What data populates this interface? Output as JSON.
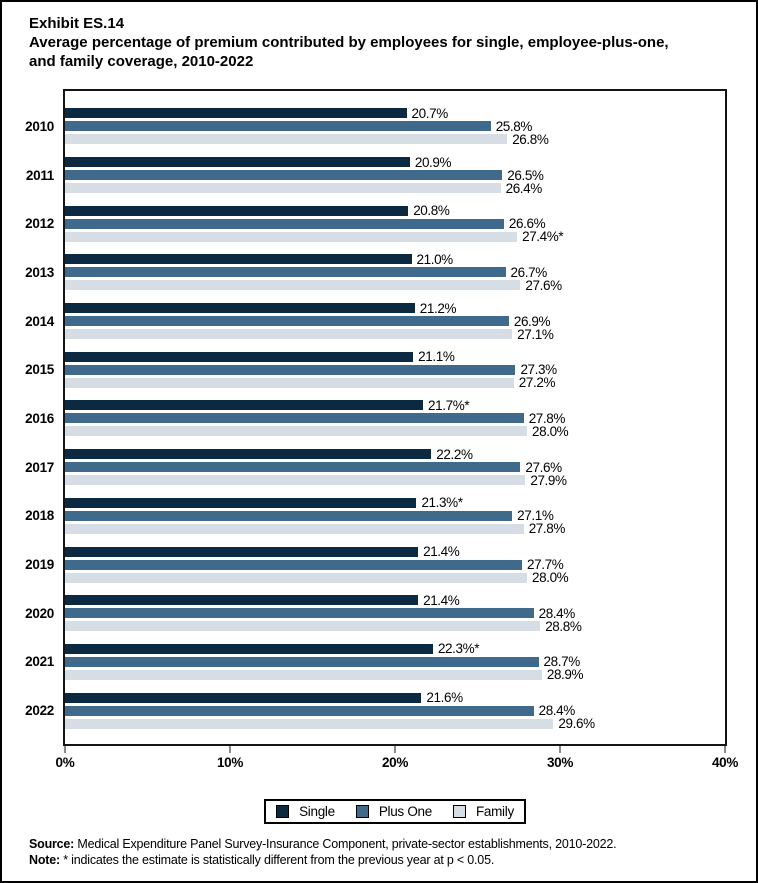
{
  "header": {
    "exhibit": "Exhibit ES.14",
    "title_lines": [
      "Average percentage of premium contributed by employees for single, employee-plus-one,",
      "and family coverage, 2010-2022"
    ]
  },
  "chart_data": {
    "type": "bar",
    "orientation": "horizontal",
    "title": "Average percentage of premium contributed by employees for single, employee-plus-one, and family coverage, 2010-2022",
    "xlabel": "",
    "ylabel": "",
    "xlim": [
      0,
      40
    ],
    "grid": false,
    "legend_position": "bottom",
    "categories": [
      "2010",
      "2011",
      "2012",
      "2013",
      "2014",
      "2015",
      "2016",
      "2017",
      "2018",
      "2019",
      "2020",
      "2021",
      "2022"
    ],
    "series": [
      {
        "name": "Single",
        "color": "#0b2940",
        "values": [
          20.7,
          20.9,
          20.8,
          21.0,
          21.2,
          21.1,
          21.7,
          22.2,
          21.3,
          21.4,
          21.4,
          22.3,
          21.6
        ],
        "labels": [
          "20.7%",
          "20.9%",
          "20.8%",
          "21.0%",
          "21.2%",
          "21.1%",
          "21.7%*",
          "22.2%",
          "21.3%*",
          "21.4%",
          "21.4%",
          "22.3%*",
          "21.6%"
        ]
      },
      {
        "name": "Plus One",
        "color": "#3f6a8c",
        "values": [
          25.8,
          26.5,
          26.6,
          26.7,
          26.9,
          27.3,
          27.8,
          27.6,
          27.1,
          27.7,
          28.4,
          28.7,
          28.4
        ],
        "labels": [
          "25.8%",
          "26.5%",
          "26.6%",
          "26.7%",
          "26.9%",
          "27.3%",
          "27.8%",
          "27.6%",
          "27.1%",
          "27.7%",
          "28.4%",
          "28.7%",
          "28.4%"
        ]
      },
      {
        "name": "Family",
        "color": "#d7dde4",
        "values": [
          26.8,
          26.4,
          27.4,
          27.6,
          27.1,
          27.2,
          28.0,
          27.9,
          27.8,
          28.0,
          28.8,
          28.9,
          29.6
        ],
        "labels": [
          "26.8%",
          "26.4%",
          "27.4%*",
          "27.6%",
          "27.1%",
          "27.2%",
          "28.0%",
          "27.9%",
          "27.8%",
          "28.0%",
          "28.8%",
          "28.9%",
          "29.6%"
        ]
      }
    ],
    "x_ticks": [
      {
        "label": "0%",
        "value": 0
      },
      {
        "label": "10%",
        "value": 10
      },
      {
        "label": "20%",
        "value": 20
      },
      {
        "label": "30%",
        "value": 30
      },
      {
        "label": "40%",
        "value": 40
      }
    ],
    "note_marker": "*"
  },
  "footer": {
    "source_prefix": "Source:",
    "source_text": "Medical Expenditure Panel Survey-Insurance Component, private-sector establishments, 2010-2022.",
    "note_prefix": "Note:",
    "note_text": "* indicates the estimate is statistically different from the previous year at p < 0.05."
  }
}
